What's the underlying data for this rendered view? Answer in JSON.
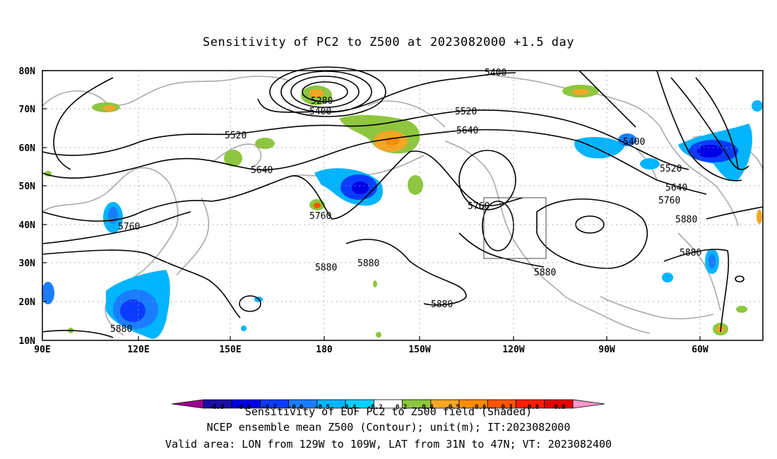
{
  "title": "Sensitivity of PC2 to Z500 at 2023082000 +1.5 day",
  "lat_ticks": [
    "10N",
    "20N",
    "30N",
    "40N",
    "50N",
    "60N",
    "70N",
    "80N"
  ],
  "lon_ticks": [
    "90E",
    "120E",
    "150E",
    "180",
    "150W",
    "120W",
    "90W",
    "60W"
  ],
  "contour_labels": [
    "5280",
    "5400",
    "5400",
    "5400",
    "5520",
    "5520",
    "5520",
    "5640",
    "5640",
    "5640",
    "5760",
    "5760",
    "5760",
    "5760",
    "5880",
    "5880",
    "5880",
    "5880",
    "5880",
    "5880",
    "5880"
  ],
  "colorbar": {
    "ticks": [
      "-0.9",
      "-0.8",
      "-0.7",
      "-0.6",
      "-0.5",
      "-0.4",
      "-0.2",
      "0.2",
      "0.4",
      "0.5",
      "0.6",
      "0.7",
      "0.8",
      "0.9"
    ],
    "colors": [
      "#a0008f",
      "#1a0fa6",
      "#0000e6",
      "#0a3cff",
      "#1a7dff",
      "#00b4ff",
      "#00d2ff",
      "#ffffff",
      "#8ec63f",
      "#f5a623",
      "#ff8c00",
      "#ff5500",
      "#ff2000",
      "#e60000",
      "#ff99cc"
    ]
  },
  "footer": {
    "caption": "Sensitivity of EOF PC2 to Z500 field (Shaded)",
    "line1": "NCEP ensemble mean Z500 (Contour); unit(m); IT:2023082000",
    "line2": "Valid area: LON from 129W to 109W, LAT from 31N to 47N; VT: 2023082400"
  }
}
